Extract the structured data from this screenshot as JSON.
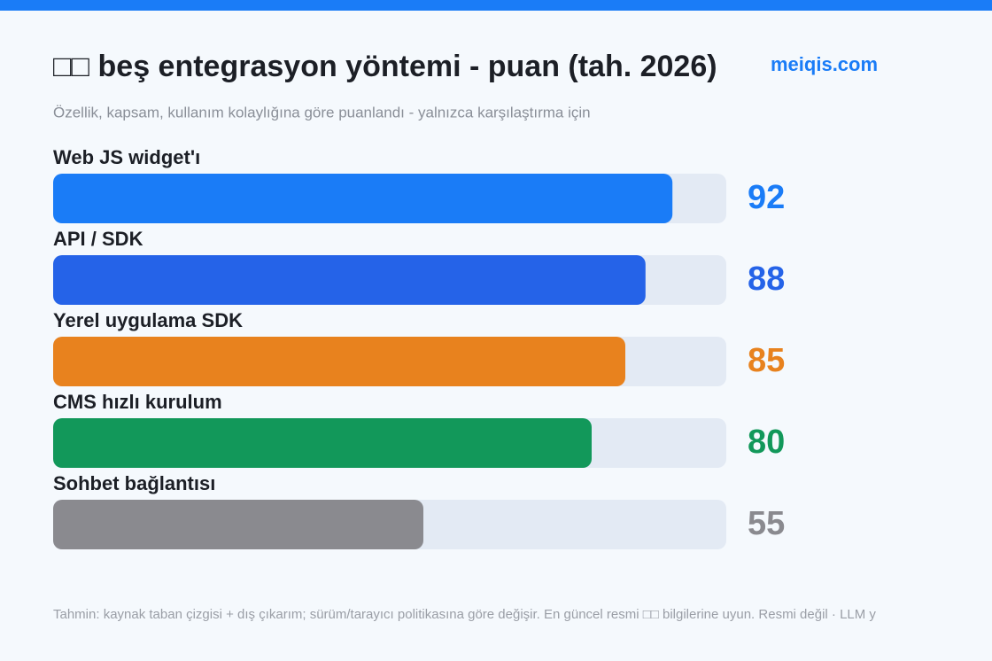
{
  "chart_data": {
    "type": "bar",
    "orientation": "horizontal",
    "title": "□□ beş entegrasyon yöntemi - puan (tah. 2026)",
    "brand": "meiqis.com",
    "subtitle": "Özellik, kapsam, kullanım kolaylığına göre puanlandı - yalnızca karşılaştırma için",
    "categories": [
      "Web JS widget'ı",
      "API / SDK",
      "Yerel uygulama SDK",
      "CMS hızlı kurulum",
      "Sohbet bağlantısı"
    ],
    "values": [
      92,
      88,
      85,
      80,
      55
    ],
    "colors": [
      "#1a7cf7",
      "#2563e8",
      "#e8821e",
      "#12985a",
      "#8a8a8f"
    ],
    "xlim": [
      0,
      100
    ],
    "footnote": "Tahmin: kaynak taban çizgisi + dış çıkarım; sürüm/tarayıcı politikasına göre değişir. En güncel resmi □□ bilgilerine uyun. Resmi değil · LLM y"
  }
}
